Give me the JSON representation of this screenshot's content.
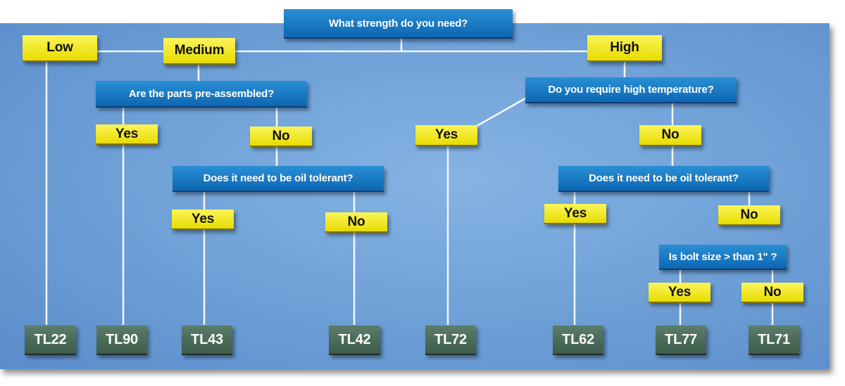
{
  "questions": {
    "strength": "What strength do you need?",
    "pre_assembled": "Are the parts pre-assembled?",
    "oil_tolerant_medium": "Does it need to be oil tolerant?",
    "high_temperature": "Do you require high temperature?",
    "oil_tolerant_high": "Does it need to be oil tolerant?",
    "bolt_size": "Is bolt size > than 1\" ?"
  },
  "answers": {
    "low": "Low",
    "medium": "Medium",
    "high": "High",
    "pre_assembled_yes": "Yes",
    "pre_assembled_no": "No",
    "oil_medium_yes": "Yes",
    "oil_medium_no": "No",
    "high_temp_yes": "Yes",
    "high_temp_no": "No",
    "oil_high_yes": "Yes",
    "oil_high_no": "No",
    "bolt_yes": "Yes",
    "bolt_no": "No"
  },
  "results": [
    "TL22",
    "TL90",
    "TL43",
    "TL42",
    "TL72",
    "TL62",
    "TL77",
    "TL71"
  ],
  "colors": {
    "question": "#1478c4",
    "answer": "#f2e91e",
    "result": "#4a6b58",
    "background": "#6d9fd6"
  }
}
